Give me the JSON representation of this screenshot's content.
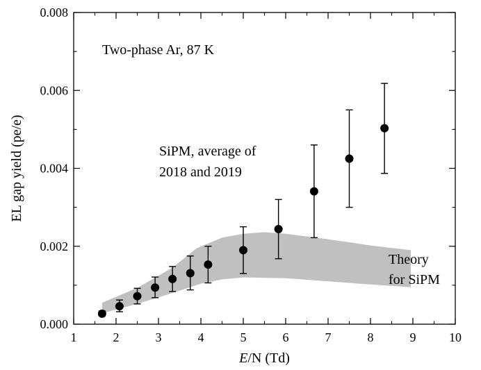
{
  "chart_data": {
    "type": "scatter",
    "title": "",
    "xlabel": {
      "italic": "E",
      "rest": "/N (Td)"
    },
    "ylabel": "EL gap yield (pe/e)",
    "xlim": [
      1,
      10
    ],
    "ylim": [
      0,
      0.008
    ],
    "x_ticks": [
      "1",
      "2",
      "3",
      "4",
      "5",
      "6",
      "7",
      "8",
      "9",
      "10"
    ],
    "y_ticks": [
      "0.000",
      "0.002",
      "0.004",
      "0.006",
      "0.008"
    ],
    "grid": false,
    "annotations": {
      "condition": "Two-phase Ar, 87 K",
      "series_line1": "SiPM, average of",
      "series_line2": "2018 and 2019",
      "theory_line1": "Theory",
      "theory_line2": "for SiPM"
    },
    "series": [
      {
        "kind": "points-with-error-bars",
        "points": [
          {
            "x": 1.67,
            "y": 0.00027,
            "lo": 0.00021,
            "hi": 0.00034
          },
          {
            "x": 2.08,
            "y": 0.00046,
            "lo": 0.00032,
            "hi": 0.00062
          },
          {
            "x": 2.5,
            "y": 0.00072,
            "lo": 0.00052,
            "hi": 0.00092
          },
          {
            "x": 2.92,
            "y": 0.00094,
            "lo": 0.00068,
            "hi": 0.00121
          },
          {
            "x": 3.33,
            "y": 0.00116,
            "lo": 0.00084,
            "hi": 0.00148
          },
          {
            "x": 3.75,
            "y": 0.00131,
            "lo": 0.00088,
            "hi": 0.00175
          },
          {
            "x": 4.17,
            "y": 0.00153,
            "lo": 0.00106,
            "hi": 0.002
          },
          {
            "x": 5.0,
            "y": 0.0019,
            "lo": 0.0013,
            "hi": 0.0025
          },
          {
            "x": 5.83,
            "y": 0.00244,
            "lo": 0.00168,
            "hi": 0.0032
          },
          {
            "x": 6.67,
            "y": 0.00341,
            "lo": 0.00222,
            "hi": 0.0046
          },
          {
            "x": 7.5,
            "y": 0.00425,
            "lo": 0.003,
            "hi": 0.0055
          },
          {
            "x": 8.33,
            "y": 0.00503,
            "lo": 0.00387,
            "hi": 0.00618
          }
        ]
      },
      {
        "kind": "band",
        "color": "#c0c0c0",
        "upper": [
          [
            1.67,
            0.00055
          ],
          [
            2.5,
            0.00093
          ],
          [
            3.33,
            0.00145
          ],
          [
            3.9,
            0.00195
          ],
          [
            4.5,
            0.00222
          ],
          [
            5.0,
            0.00232
          ],
          [
            5.5,
            0.00236
          ],
          [
            6.0,
            0.00232
          ],
          [
            7.0,
            0.00218
          ],
          [
            8.0,
            0.00202
          ],
          [
            8.95,
            0.0019
          ]
        ],
        "lower": [
          [
            1.67,
            0.00028
          ],
          [
            2.5,
            0.00052
          ],
          [
            3.33,
            0.0008
          ],
          [
            4.0,
            0.00104
          ],
          [
            4.5,
            0.00115
          ],
          [
            5.0,
            0.0012
          ],
          [
            6.0,
            0.00118
          ],
          [
            7.0,
            0.0011
          ],
          [
            8.0,
            0.00102
          ],
          [
            8.95,
            0.00095
          ]
        ]
      }
    ]
  }
}
